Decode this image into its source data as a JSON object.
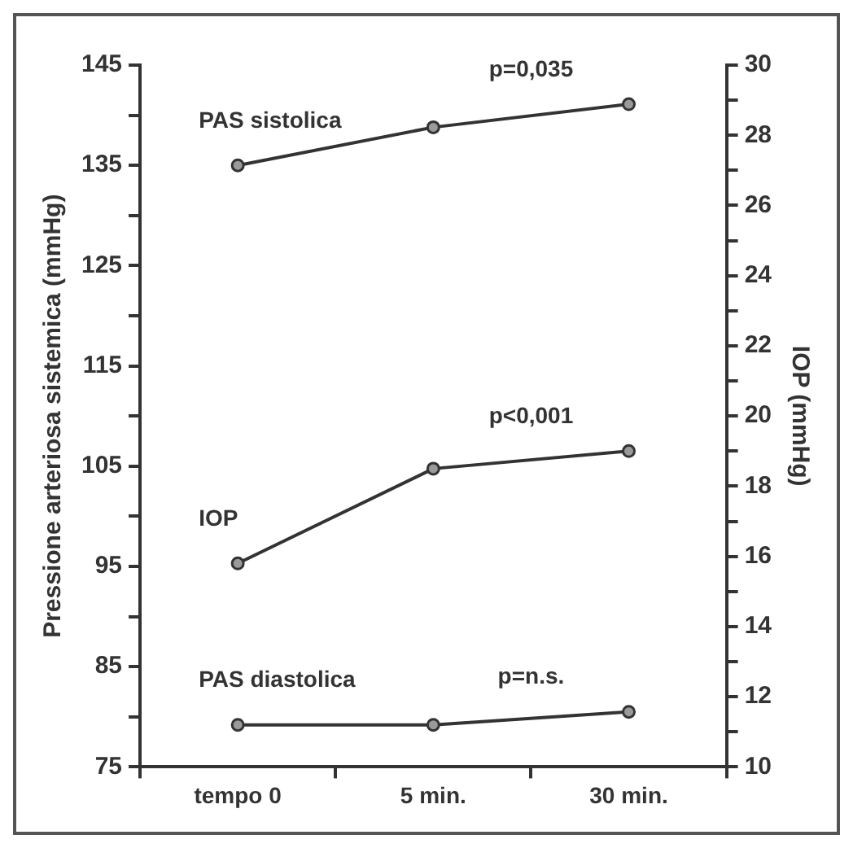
{
  "chart_data": {
    "type": "line",
    "ylabel": "Pressione arteriosa sistemica (mmHg)",
    "y2label": "IOP (mmHg)",
    "categories": [
      "tempo 0",
      "5 min.",
      "30 min."
    ],
    "series": [
      {
        "name": "PAS sistolica",
        "color": "#333333",
        "values": [
          135,
          138.8,
          141.1
        ]
      },
      {
        "name": "IOP",
        "color": "#333333",
        "values": [
          15.8,
          18.5,
          19.0
        ],
        "axis": "y2"
      },
      {
        "name": "PAS diastolica",
        "color": "#333333",
        "values": [
          79.2,
          79.2,
          80.5
        ]
      }
    ],
    "annotations": [
      "p=0,035",
      "p<0,001",
      "p=n.s."
    ],
    "ylim": [
      75,
      145
    ],
    "yticks": [
      75,
      {
        "value": 80,
        "label": null
      },
      85,
      {
        "value": 90,
        "label": null
      },
      95,
      {
        "value": 100,
        "label": null
      },
      105,
      {
        "value": 110,
        "label": null
      },
      115,
      {
        "value": 120,
        "label": null
      },
      125,
      {
        "value": 130,
        "label": null
      },
      135,
      {
        "value": 140,
        "label": null
      },
      145
    ],
    "y2lim": [
      10,
      30
    ],
    "y2ticks": [
      10,
      {
        "value": 11,
        "label": null
      },
      12,
      {
        "value": 13,
        "label": null
      },
      14,
      {
        "value": 15,
        "label": null
      },
      16,
      {
        "value": 17,
        "label": null
      },
      18,
      {
        "value": 19,
        "label": null
      },
      20,
      {
        "value": 21,
        "label": null
      },
      22,
      {
        "value": 23,
        "label": null
      },
      24,
      {
        "value": 25,
        "label": null
      },
      26,
      {
        "value": 27,
        "label": null
      },
      28,
      {
        "value": 29,
        "label": null
      },
      30
    ],
    "marker": "circle",
    "line_style": "solid",
    "grid": false,
    "legend": false
  }
}
